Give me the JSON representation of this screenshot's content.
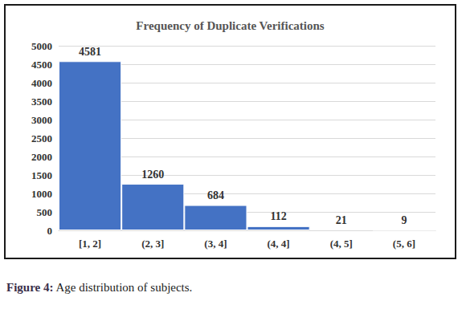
{
  "chart_data": {
    "type": "bar",
    "title": "Frequency of Duplicate Verifications",
    "categories": [
      "[1, 2]",
      "(2, 3]",
      "(3, 4]",
      "(4, 4]",
      "(4, 5]",
      "(5, 6]"
    ],
    "values": [
      4581,
      1260,
      684,
      112,
      21,
      9
    ],
    "color": "#4472c4",
    "ylim": [
      0,
      5000
    ],
    "yticks": [
      0,
      500,
      1000,
      1500,
      2000,
      2500,
      3000,
      3500,
      4000,
      4500,
      5000
    ],
    "grid": true,
    "data_labels": true,
    "caption": "Figure 4: Age distribution of subjects."
  }
}
